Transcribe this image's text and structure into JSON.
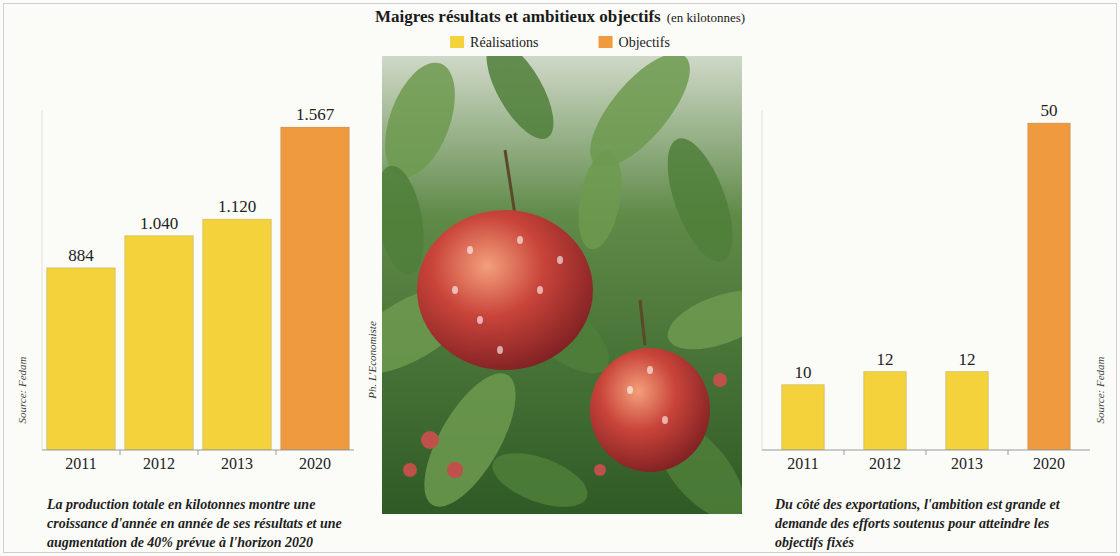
{
  "header": {
    "title": "Maigres résultats et ambitieux objectifs",
    "unit": "(en kilotonnes)",
    "legend": [
      {
        "label": "Réalisations",
        "color": "#f3d23c"
      },
      {
        "label": "Objectifs",
        "color": "#ef9a3e"
      }
    ]
  },
  "photo": {
    "credit": "Ph. L'Economiste"
  },
  "chart_data": [
    {
      "type": "bar",
      "categories": [
        "2011",
        "2012",
        "2013",
        "2020"
      ],
      "values": [
        884,
        1040,
        1120,
        1567
      ],
      "value_labels": [
        "884",
        "1.040",
        "1.120",
        "1.567"
      ],
      "colors": [
        "#f3d23c",
        "#f3d23c",
        "#f3d23c",
        "#ef9a3e"
      ],
      "data_labels": true,
      "ylim": [
        0,
        1650
      ],
      "tick_labels": "x",
      "source": "Source: Fedam",
      "caption": "La production totale en kilotonnes montre une croissance d'année en année de ses résultats et une augmentation de 40% prévue à l'horizon 2020"
    },
    {
      "type": "bar",
      "categories": [
        "2011",
        "2012",
        "2013",
        "2020"
      ],
      "values": [
        10,
        12,
        12,
        50
      ],
      "colors": [
        "#f3d23c",
        "#f3d23c",
        "#f3d23c",
        "#ef9a3e"
      ],
      "data_labels": true,
      "ylim": [
        0,
        52
      ],
      "tick_labels": "x",
      "source": "Source: Fedam",
      "caption": "Du côté des exportations, l'ambition est grande et demande des efforts soutenus pour atteindre les objectifs fixés"
    }
  ]
}
